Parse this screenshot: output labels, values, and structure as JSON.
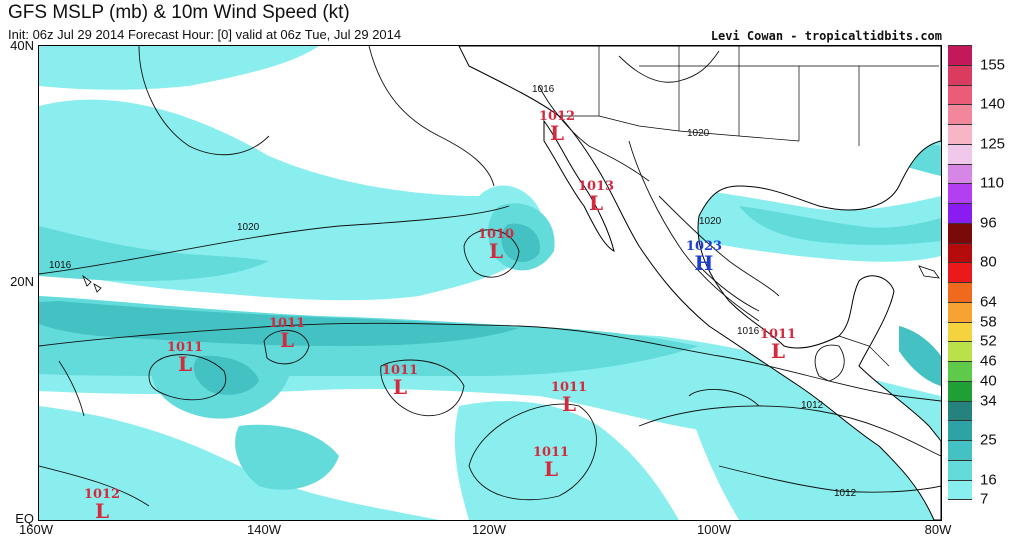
{
  "header": {
    "title": "GFS MSLP (mb) & 10m Wind Speed (kt)",
    "subtitle": "Init: 06z Jul 29 2014 Forecast Hour: [0] valid at 06z Tue, Jul 29 2014",
    "credit": "Levi Cowan - tropicaltidbits.com"
  },
  "axes": {
    "lat_labels": [
      "40N",
      "20N",
      "EQ"
    ],
    "lon_labels": [
      "160W",
      "140W",
      "120W",
      "100W",
      "80W"
    ]
  },
  "colorbar": {
    "labels": [
      "155",
      "140",
      "125",
      "110",
      "96",
      "80",
      "64",
      "58",
      "52",
      "46",
      "40",
      "34",
      "25",
      "16",
      "7"
    ],
    "colors": [
      "#c4185b",
      "#d93c5e",
      "#ea5c78",
      "#f2869b",
      "#f7b5c6",
      "#f0c8ec",
      "#d586e6",
      "#b23ff0",
      "#8a1cf2",
      "#7a0a0a",
      "#b40c0c",
      "#ea1a1a",
      "#f06a1e",
      "#f7a331",
      "#f5d33e",
      "#b9e14a",
      "#5fc94a",
      "#1fa037",
      "#25837f",
      "#2ea3a6",
      "#44c1c2",
      "#63dbdb",
      "#89eeee",
      "#ffffff"
    ]
  },
  "pressure_systems": [
    {
      "type": "L",
      "value": "1012",
      "color": "#d42a3e"
    },
    {
      "type": "L",
      "value": "1013",
      "color": "#d42a3e"
    },
    {
      "type": "L",
      "value": "1010",
      "color": "#d42a3e"
    },
    {
      "type": "H",
      "value": "1023",
      "color": "#1d3fcf"
    },
    {
      "type": "L",
      "value": "1011",
      "color": "#d42a3e"
    },
    {
      "type": "L",
      "value": "1011",
      "color": "#d42a3e"
    },
    {
      "type": "L",
      "value": "1011",
      "color": "#d42a3e"
    },
    {
      "type": "L",
      "value": "1011",
      "color": "#d42a3e"
    },
    {
      "type": "L",
      "value": "1011",
      "color": "#d42a3e"
    },
    {
      "type": "L",
      "value": "1011",
      "color": "#d42a3e"
    },
    {
      "type": "L",
      "value": "1012",
      "color": "#d42a3e"
    }
  ],
  "isobar_labels": [
    "1016",
    "1020",
    "1016",
    "1020",
    "1016",
    "1012",
    "1012",
    "1020"
  ],
  "colors": {
    "ocean_wind_light": "#8aeeee",
    "ocean_wind_mid": "#63dbdb",
    "ocean_wind_dark": "#44c1c2",
    "calm": "#ffffff"
  }
}
